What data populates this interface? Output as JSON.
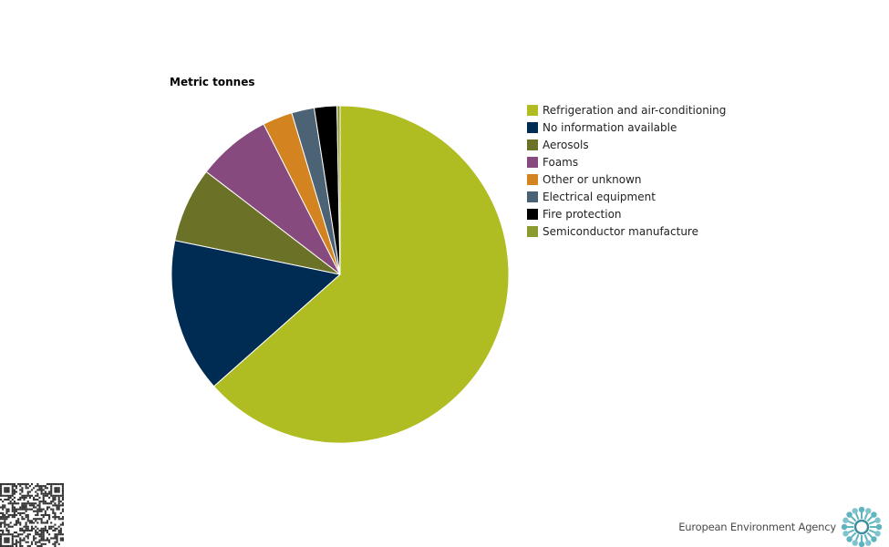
{
  "chart_data": {
    "type": "pie",
    "title": "Metric tonnes",
    "legend_position": "right",
    "start_angle_deg": 0,
    "direction": "clockwise",
    "slices": [
      {
        "name": "Refrigeration and air-conditioning",
        "value": 64.4,
        "color": "#afbd22"
      },
      {
        "name": "No information available",
        "value": 15.0,
        "color": "#002c54"
      },
      {
        "name": "Aerosols",
        "value": 7.3,
        "color": "#6c7128"
      },
      {
        "name": "Foams",
        "value": 7.2,
        "color": "#874a7f"
      },
      {
        "name": "Other or unknown",
        "value": 2.9,
        "color": "#d48321"
      },
      {
        "name": "Electrical equipment",
        "value": 2.2,
        "color": "#4c6275"
      },
      {
        "name": "Fire protection",
        "value": 2.2,
        "color": "#000000"
      },
      {
        "name": "Semiconductor manufacture",
        "value": 0.3,
        "color": "#8c9b30"
      }
    ]
  },
  "footer": {
    "brand": "European Environment Agency",
    "logo_icon": "eea-sun-logo-icon",
    "qr_icon": "qr-code-icon",
    "logo_color": "#5fb4bf"
  }
}
